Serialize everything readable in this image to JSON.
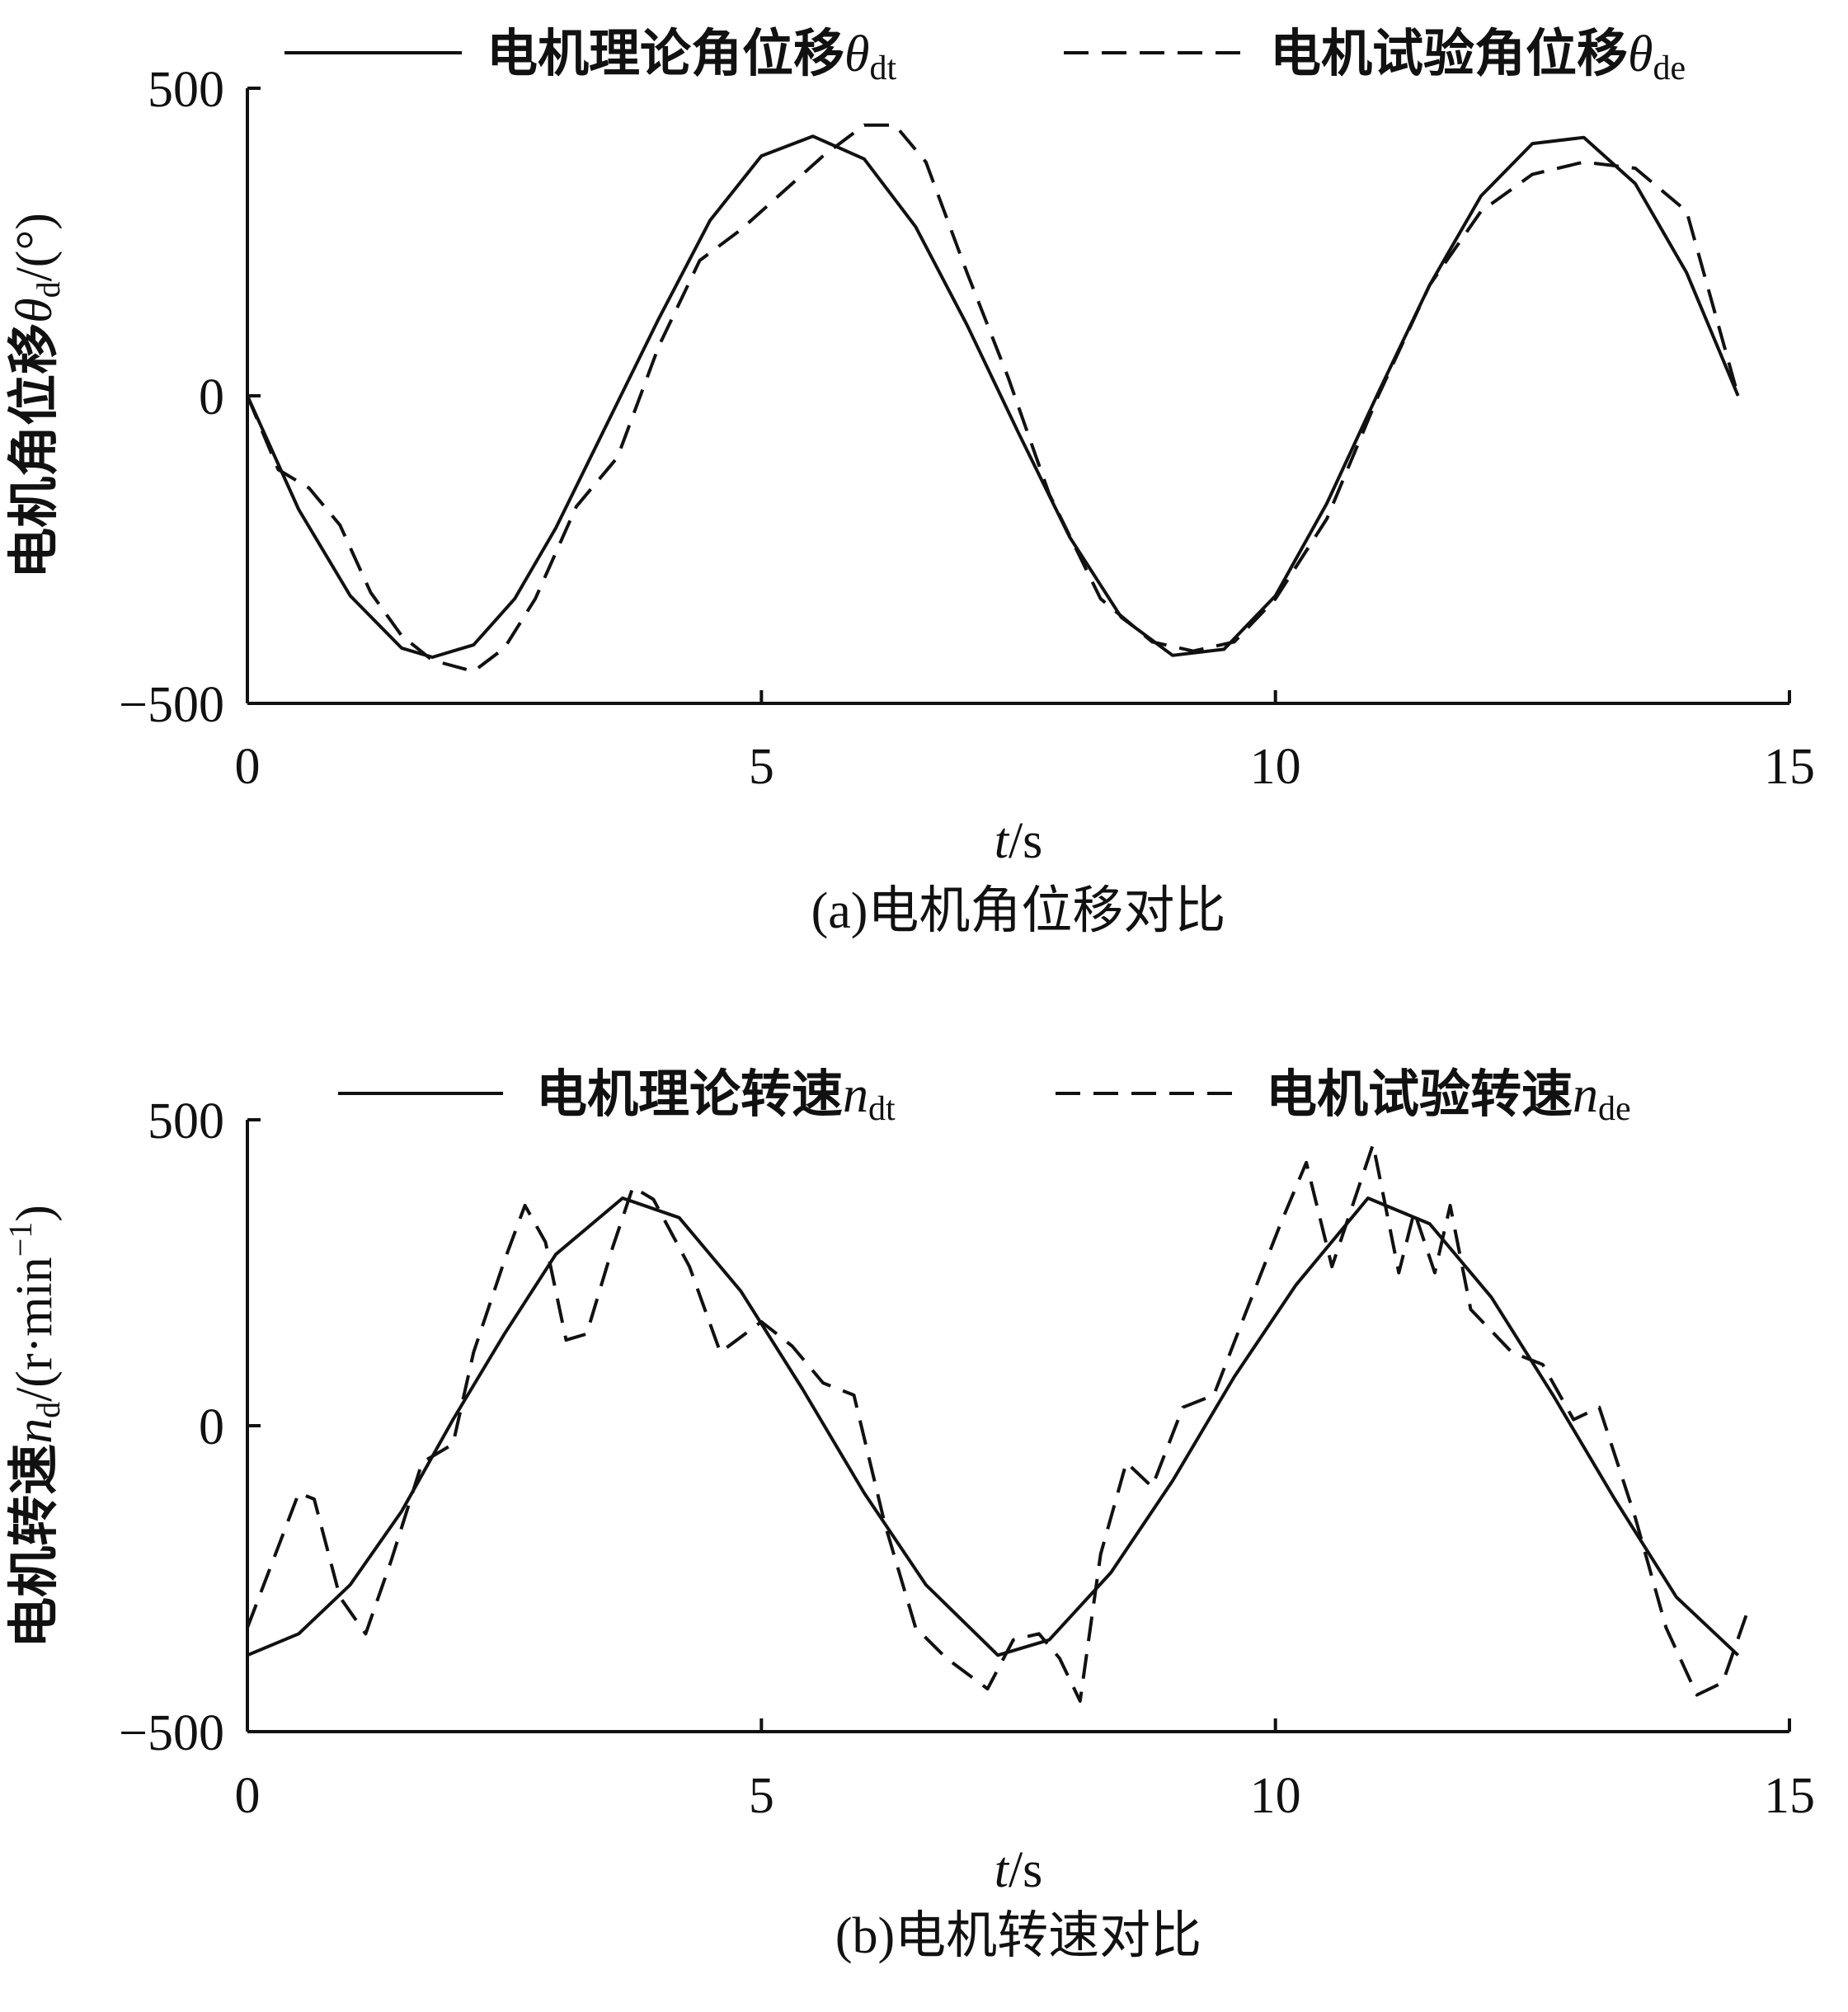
{
  "chart_data": [
    {
      "type": "line",
      "caption": "(a)电机角位移对比",
      "xlabel": "t/s",
      "xlabel_italic": "t",
      "xlabel_rest": "/s",
      "ylabel": "电机角位移θd/(°)",
      "ylabel_text": "电机角位移",
      "ylabel_symbol": "θ",
      "ylabel_sub": "d",
      "ylabel_unit": "/(°)",
      "xlim": [
        0,
        15
      ],
      "ylim": [
        -500,
        500
      ],
      "xticks": [
        "0",
        "5",
        "10",
        "15"
      ],
      "xtick_values": [
        0,
        5,
        10,
        15
      ],
      "yticks": [
        "500",
        "0",
        "−500"
      ],
      "ytick_values": [
        500,
        0,
        -500
      ],
      "grid": false,
      "legend_position": "top",
      "series": [
        {
          "name": "电机理论角位移θdt",
          "legend_text": "电机理论角位移",
          "legend_symbol": "θ",
          "legend_sub": "dt",
          "style": "solid",
          "x": [
            0,
            0.5,
            1,
            1.5,
            1.8,
            2.2,
            2.6,
            3,
            3.5,
            4,
            4.5,
            5,
            5.5,
            6,
            6.5,
            7,
            7.5,
            8,
            8.5,
            9,
            9.5,
            10,
            10.5,
            11,
            11.5,
            12,
            12.5,
            13,
            13.5,
            14,
            14.5
          ],
          "y": [
            0,
            -185,
            -325,
            -410,
            -425,
            -405,
            -330,
            -215,
            -45,
            125,
            285,
            390,
            422,
            385,
            275,
            115,
            -60,
            -230,
            -360,
            -422,
            -412,
            -325,
            -175,
            5,
            180,
            325,
            410,
            420,
            345,
            200,
            0
          ]
        },
        {
          "name": "电机试验角位移θde",
          "legend_text": "电机试验角位移",
          "legend_symbol": "θ",
          "legend_sub": "de",
          "style": "dashed",
          "x": [
            0,
            0.3,
            0.6,
            0.9,
            1.2,
            1.5,
            1.8,
            2.2,
            2.5,
            2.8,
            3.2,
            3.6,
            4,
            4.4,
            4.8,
            5.2,
            5.6,
            6,
            6.3,
            6.6,
            7,
            7.4,
            7.8,
            8.3,
            8.8,
            9.2,
            9.6,
            10,
            10.5,
            11,
            11.5,
            12,
            12.5,
            13,
            13.5,
            14,
            14.5
          ],
          "y": [
            0,
            -120,
            -150,
            -210,
            -320,
            -390,
            -430,
            -448,
            -410,
            -330,
            -180,
            -100,
            80,
            220,
            270,
            330,
            390,
            440,
            440,
            380,
            200,
            30,
            -160,
            -330,
            -400,
            -415,
            -400,
            -330,
            -200,
            0,
            180,
            300,
            360,
            380,
            370,
            300,
            0
          ]
        }
      ]
    },
    {
      "type": "line",
      "caption": "(b)电机转速对比",
      "xlabel": "t/s",
      "xlabel_italic": "t",
      "xlabel_rest": "/s",
      "ylabel": "电机转速nd/(r·min−1)",
      "ylabel_text": "电机转速",
      "ylabel_symbol": "n",
      "ylabel_sub": "d",
      "ylabel_unit": "/(r·min",
      "ylabel_sup": "−1",
      "ylabel_close": ")",
      "xlim": [
        0,
        15
      ],
      "ylim": [
        -500,
        500
      ],
      "xticks": [
        "0",
        "5",
        "10",
        "15"
      ],
      "xtick_values": [
        0,
        5,
        10,
        15
      ],
      "yticks": [
        "500",
        "0",
        "−500"
      ],
      "ytick_values": [
        500,
        0,
        -500
      ],
      "grid": false,
      "legend_position": "top",
      "series": [
        {
          "name": "电机理论转速ndt",
          "legend_text": "电机理论转速",
          "legend_symbol": "n",
          "legend_sub": "dt",
          "style": "solid",
          "x": [
            0,
            0.5,
            1,
            1.5,
            2,
            2.5,
            3,
            3.65,
            4.2,
            4.8,
            5.4,
            6,
            6.6,
            7.3,
            7.8,
            8.4,
            9,
            9.6,
            10.2,
            10.9,
            11.5,
            12.1,
            12.7,
            13.3,
            13.9,
            14.5
          ],
          "y": [
            -375,
            -340,
            -260,
            -140,
            10,
            150,
            280,
            372,
            340,
            220,
            60,
            -110,
            -260,
            -375,
            -350,
            -240,
            -90,
            80,
            230,
            372,
            330,
            210,
            50,
            -120,
            -280,
            -375
          ]
        },
        {
          "name": "电机试验转速nde",
          "legend_text": "电机试验转速",
          "legend_symbol": "n",
          "legend_sub": "de",
          "style": "dashed",
          "x": [
            0,
            0.25,
            0.5,
            0.65,
            0.9,
            1.15,
            1.4,
            1.7,
            2.0,
            2.2,
            2.5,
            2.7,
            2.9,
            3.1,
            3.3,
            3.55,
            3.75,
            3.95,
            4.3,
            4.6,
            5.0,
            5.3,
            5.6,
            5.9,
            6.2,
            6.5,
            6.8,
            7.2,
            7.45,
            7.7,
            7.9,
            8.1,
            8.3,
            8.55,
            8.8,
            9.1,
            9.4,
            9.7,
            10.05,
            10.3,
            10.55,
            10.75,
            10.95,
            11.2,
            11.35,
            11.55,
            11.7,
            11.9,
            12.3,
            12.6,
            12.9,
            13.15,
            13.5,
            13.8,
            14.1,
            14.35,
            14.6
          ],
          "y": [
            -330,
            -220,
            -110,
            -120,
            -280,
            -340,
            -220,
            -60,
            -30,
            120,
            270,
            360,
            300,
            140,
            150,
            290,
            390,
            370,
            260,
            120,
            170,
            130,
            70,
            50,
            -160,
            -330,
            -380,
            -430,
            -350,
            -340,
            -380,
            -450,
            -210,
            -60,
            -100,
            30,
            50,
            180,
            330,
            430,
            260,
            360,
            460,
            250,
            350,
            250,
            360,
            190,
            120,
            100,
            10,
            30,
            -150,
            -330,
            -440,
            -420,
            -300
          ]
        }
      ]
    }
  ]
}
